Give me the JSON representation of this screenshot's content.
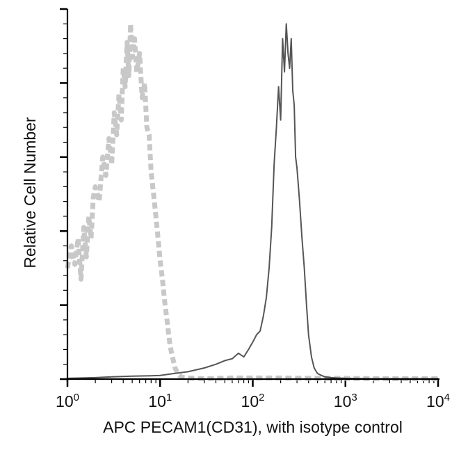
{
  "chart_data": {
    "type": "line",
    "title": "",
    "xlabel": "APC PECAM1(CD31), with isotype control",
    "ylabel": "Relative Cell Number",
    "x_scale": "log",
    "xlim": [
      1,
      10000
    ],
    "ylim": [
      0,
      100
    ],
    "grid": false,
    "legend": "none",
    "x_ticks": [
      {
        "base": "10",
        "exp": "0",
        "value": 1
      },
      {
        "base": "10",
        "exp": "1",
        "value": 10
      },
      {
        "base": "10",
        "exp": "2",
        "value": 100
      },
      {
        "base": "10",
        "exp": "3",
        "value": 1000
      },
      {
        "base": "10",
        "exp": "4",
        "value": 10000
      }
    ],
    "y_major_ticks": [
      0,
      20,
      40,
      60,
      80,
      100
    ],
    "series": [
      {
        "role": "isotype",
        "color": "#c8c8c8",
        "style": "dashed",
        "x": [
          1.0,
          1.1,
          1.2,
          1.3,
          1.4,
          1.5,
          1.6,
          1.7,
          1.8,
          1.9,
          2.0,
          2.2,
          2.4,
          2.6,
          2.8,
          3.0,
          3.2,
          3.4,
          3.6,
          3.8,
          4.0,
          4.2,
          4.4,
          4.6,
          4.8,
          5.0,
          5.3,
          5.6,
          6.0,
          6.4,
          6.8,
          7.2,
          7.6,
          8.0,
          8.5,
          9.0,
          9.5,
          10.0,
          10.6,
          11.2,
          12.0,
          12.8,
          13.6,
          14.5,
          15.5,
          17,
          20,
          30,
          60,
          100,
          200,
          500,
          1000,
          3000,
          10000
        ],
        "y": [
          30,
          36,
          31,
          38,
          27,
          41,
          33,
          44,
          38,
          49,
          52,
          48,
          60,
          55,
          65,
          58,
          72,
          66,
          77,
          70,
          84,
          79,
          91,
          82,
          96,
          87,
          92,
          83,
          88,
          76,
          80,
          68,
          66,
          56,
          50,
          44,
          38,
          32,
          27,
          21,
          15,
          9,
          6,
          3,
          1.5,
          0.5,
          0.3,
          0.1,
          0.3,
          0.3,
          0.3,
          0.2,
          0.2,
          0.1,
          0.1
        ]
      },
      {
        "role": "stained",
        "color": "#555555",
        "style": "solid",
        "x": [
          1.0,
          2.0,
          3.0,
          5.0,
          8.0,
          10.0,
          14.0,
          20.0,
          30.0,
          40.0,
          50.0,
          60.0,
          70.0,
          80.0,
          90.0,
          100.0,
          110.0,
          120.0,
          130.0,
          140.0,
          150.0,
          160.0,
          170.0,
          180.0,
          190.0,
          200.0,
          210.0,
          220.0,
          230.0,
          240.0,
          250.0,
          260.0,
          270.0,
          280.0,
          290.0,
          300.0,
          320.0,
          340.0,
          360.0,
          380.0,
          400.0,
          430.0,
          460.0,
          500.0,
          550.0,
          600.0,
          700.0,
          800.0,
          1000.0,
          2000.0,
          5000.0,
          10000.0
        ],
        "y": [
          0.2,
          0.4,
          0.6,
          0.8,
          0.9,
          1.0,
          1.5,
          2.0,
          3.0,
          4.0,
          5.0,
          5.5,
          7.0,
          6.0,
          8.0,
          10,
          12,
          13,
          17,
          22,
          30,
          41,
          58,
          68,
          79,
          70,
          92,
          83,
          96,
          88,
          84,
          92,
          78,
          74,
          60,
          57,
          48,
          38,
          30,
          20,
          12,
          6,
          3,
          1.5,
          1.0,
          0.6,
          0.4,
          0.3,
          0.2,
          0.1,
          0.1,
          0.1
        ]
      }
    ]
  }
}
